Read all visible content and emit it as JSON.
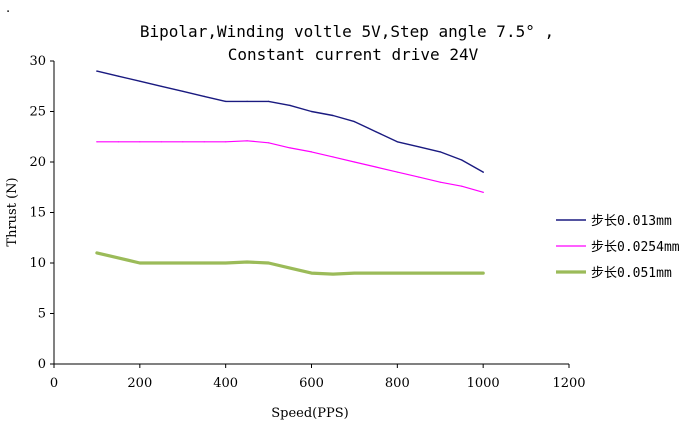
{
  "page_mark": ".",
  "chart_data": {
    "type": "line",
    "title_lines": [
      "Bipolar,Winding voltle 5V,Step angle 7.5° ,",
      "Constant current drive 24V"
    ],
    "xlabel": "Speed(PPS)",
    "ylabel": "Thrust (N)",
    "xlim": [
      0,
      1200
    ],
    "ylim": [
      0,
      30
    ],
    "xticks": [
      0,
      200,
      400,
      600,
      800,
      1000,
      1200
    ],
    "yticks": [
      0,
      5,
      10,
      15,
      20,
      25,
      30
    ],
    "grid": false,
    "legend_position": "right",
    "series": [
      {
        "name": "步长0.013mm",
        "color": "#1a1a80",
        "x": [
          100,
          150,
          200,
          250,
          300,
          350,
          400,
          450,
          500,
          550,
          600,
          650,
          700,
          750,
          800,
          850,
          900,
          950,
          1000
        ],
        "y": [
          29,
          28.5,
          28,
          27.5,
          27,
          26.5,
          26,
          26,
          26,
          25.6,
          25,
          24.6,
          24,
          23,
          22,
          21.5,
          21,
          20.2,
          19
        ]
      },
      {
        "name": "步长0.0254mm",
        "color": "#ff00ff",
        "x": [
          100,
          150,
          200,
          250,
          300,
          350,
          400,
          450,
          500,
          550,
          600,
          650,
          700,
          750,
          800,
          850,
          900,
          950,
          1000
        ],
        "y": [
          22,
          22,
          22,
          22,
          22,
          22,
          22,
          22.1,
          21.9,
          21.4,
          21,
          20.5,
          20,
          19.5,
          19,
          18.5,
          18,
          17.6,
          17
        ]
      },
      {
        "name": "步长0.051mm",
        "color": "#9bbb59",
        "x": [
          100,
          150,
          200,
          250,
          300,
          350,
          400,
          450,
          500,
          550,
          600,
          650,
          700,
          750,
          800,
          850,
          900,
          950,
          1000
        ],
        "y": [
          11,
          10.5,
          10,
          10,
          10,
          10,
          10,
          10.1,
          10,
          9.5,
          9,
          8.9,
          9,
          9,
          9,
          9,
          9,
          9,
          9
        ]
      }
    ]
  }
}
